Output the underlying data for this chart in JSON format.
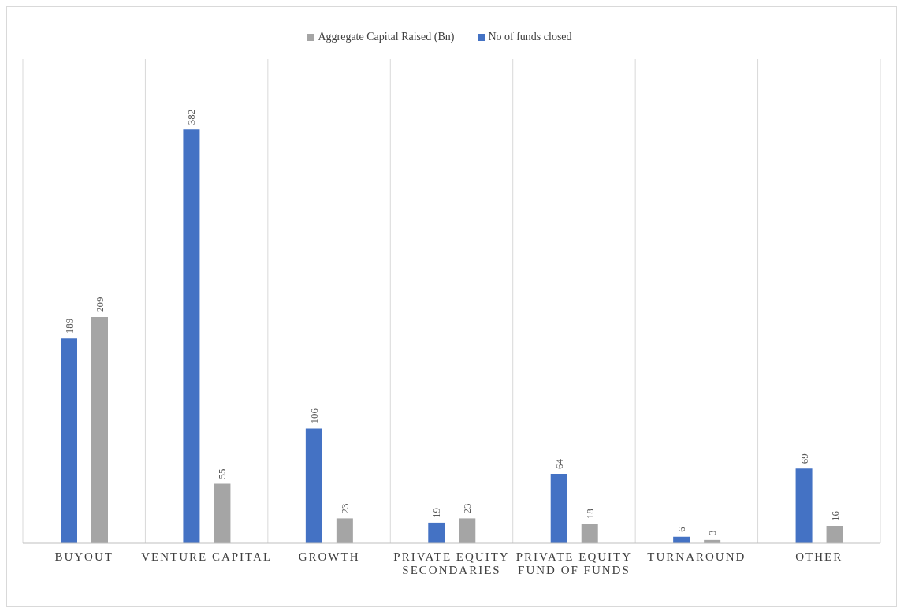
{
  "chart_data": {
    "type": "bar",
    "categories": [
      "BUYOUT",
      "VENTURE CAPITAL",
      "GROWTH",
      "PRIVATE EQUITY SECONDARIES",
      "PRIVATE EQUITY FUND OF FUNDS",
      "TURNAROUND",
      "OTHER"
    ],
    "series": [
      {
        "name": "No of funds closed",
        "color": "#4472c4",
        "values": [
          189,
          382,
          106,
          19,
          64,
          6,
          69
        ]
      },
      {
        "name": "Aggregate Capital Raised (Bn)",
        "color": "#a5a5a5",
        "values": [
          209,
          55,
          23,
          23,
          18,
          3,
          16
        ]
      }
    ],
    "data_labels": true,
    "grid": "x",
    "legend": "top"
  }
}
